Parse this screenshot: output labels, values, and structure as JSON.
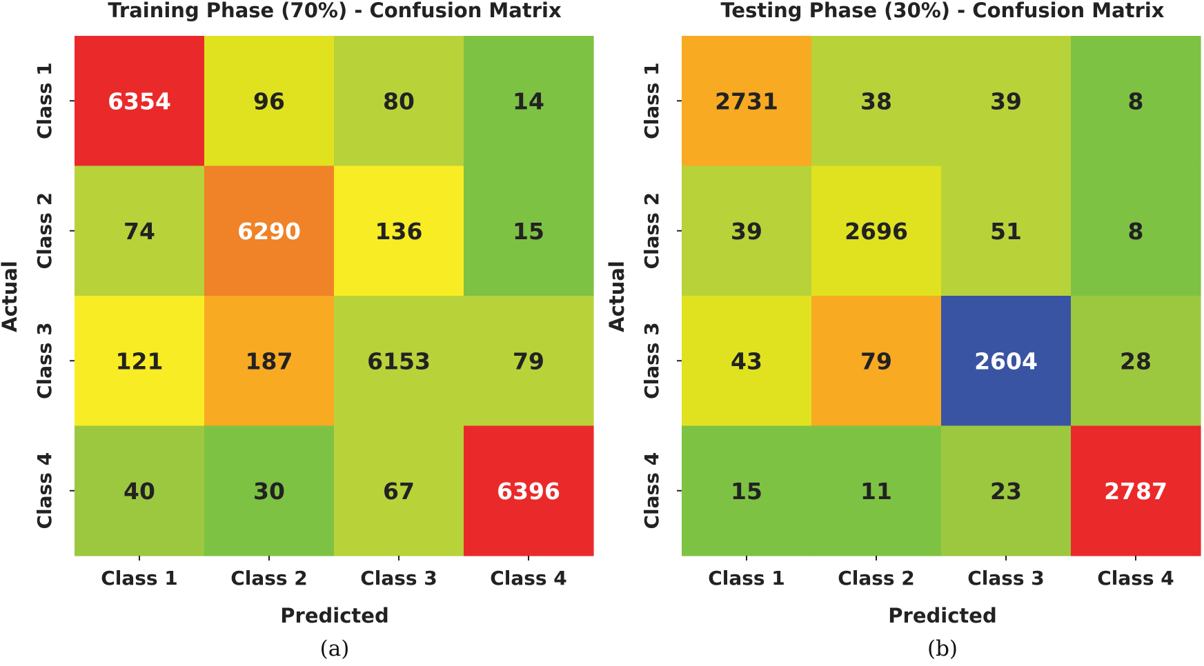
{
  "chart_data": [
    {
      "type": "heatmap",
      "title": "Training Phase (70%) - Confusion Matrix",
      "xlabel": "Predicted",
      "ylabel": "Actual",
      "x_categories": [
        "Class 1",
        "Class 2",
        "Class 3",
        "Class 4"
      ],
      "y_categories": [
        "Class 1",
        "Class 2",
        "Class 3",
        "Class 4"
      ],
      "values": [
        [
          6354,
          96,
          80,
          14
        ],
        [
          74,
          6290,
          136,
          15
        ],
        [
          121,
          187,
          6153,
          79
        ],
        [
          40,
          30,
          67,
          6396
        ]
      ],
      "cell_colors": [
        [
          "#ea2a2a",
          "#e0e220",
          "#b8d23a",
          "#7ec244"
        ],
        [
          "#b8d23a",
          "#f08228",
          "#f8ec24",
          "#7ec244"
        ],
        [
          "#f8ec24",
          "#f8aa22",
          "#b8d23a",
          "#b8d23a"
        ],
        [
          "#9cc840",
          "#7ec244",
          "#b8d23a",
          "#ea2a2a"
        ]
      ],
      "value_colors": [
        [
          "#ffffff",
          "#222222",
          "#222222",
          "#222222"
        ],
        [
          "#222222",
          "#ffffff",
          "#222222",
          "#222222"
        ],
        [
          "#222222",
          "#222222",
          "#222222",
          "#222222"
        ],
        [
          "#222222",
          "#222222",
          "#222222",
          "#ffffff"
        ]
      ],
      "caption": "(a)"
    },
    {
      "type": "heatmap",
      "title": "Testing Phase (30%) - Confusion Matrix",
      "xlabel": "Predicted",
      "ylabel": "Actual",
      "x_categories": [
        "Class 1",
        "Class 2",
        "Class 3",
        "Class 4"
      ],
      "y_categories": [
        "Class 1",
        "Class 2",
        "Class 3",
        "Class 4"
      ],
      "values": [
        [
          2731,
          38,
          39,
          8
        ],
        [
          39,
          2696,
          51,
          8
        ],
        [
          43,
          79,
          2604,
          28
        ],
        [
          15,
          11,
          23,
          2787
        ]
      ],
      "cell_colors": [
        [
          "#f8aa22",
          "#b8d23a",
          "#b8d23a",
          "#7ec244"
        ],
        [
          "#b8d23a",
          "#e0e220",
          "#b8d23a",
          "#7ec244"
        ],
        [
          "#e0e220",
          "#f8aa22",
          "#3a54a4",
          "#9cc840"
        ],
        [
          "#7ec244",
          "#7ec244",
          "#9cc840",
          "#ea2a2a"
        ]
      ],
      "value_colors": [
        [
          "#222222",
          "#222222",
          "#222222",
          "#222222"
        ],
        [
          "#222222",
          "#222222",
          "#222222",
          "#222222"
        ],
        [
          "#222222",
          "#222222",
          "#ffffff",
          "#222222"
        ],
        [
          "#222222",
          "#222222",
          "#222222",
          "#ffffff"
        ]
      ],
      "caption": "(b)"
    }
  ]
}
